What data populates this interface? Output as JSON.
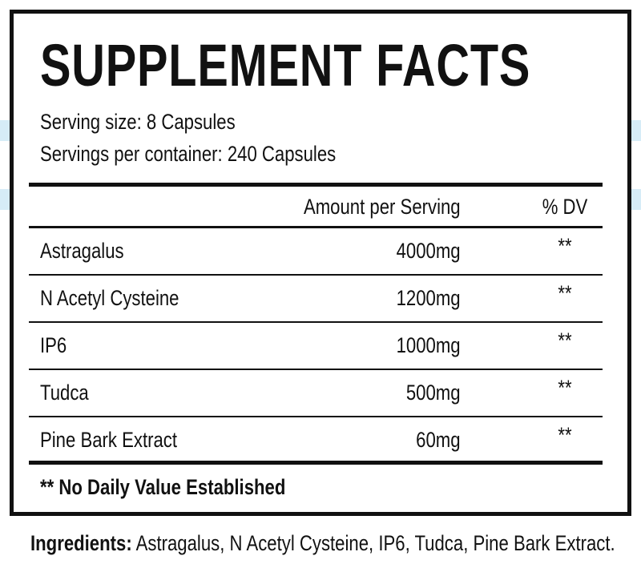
{
  "title": "SUPPLEMENT FACTS",
  "serving_size": "Serving size: 8 Capsules",
  "servings_per_container": "Servings per container: 240 Capsules",
  "table": {
    "header": [
      "Amount per Serving",
      "% DV"
    ],
    "rows": [
      [
        "Astragalus",
        "4000mg",
        "**"
      ],
      [
        "N Acetyl Cysteine",
        "1200mg",
        "**"
      ],
      [
        "IP6",
        "1000mg",
        "**"
      ],
      [
        "Tudca",
        "500mg",
        "**"
      ],
      [
        "Pine Bark Extract",
        "60mg",
        "**"
      ]
    ]
  },
  "footnote": "** No Daily Value Established",
  "ingredients": {
    "label": "Ingredients:",
    "text": "Astragalus, N Acetyl Cysteine, IP6, Tudca, Pine Bark Extract."
  }
}
